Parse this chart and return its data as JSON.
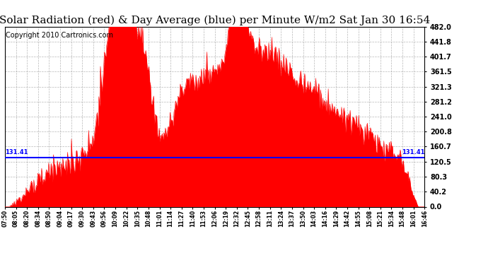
{
  "title": "Solar Radiation (red) & Day Average (blue) per Minute W/m2 Sat Jan 30 16:54",
  "copyright_text": "Copyright 2010 Cartronics.com",
  "y_max": 482.0,
  "y_min": 0.0,
  "day_average": 131.41,
  "day_average_label": "131.41",
  "bg_color": "#ffffff",
  "plot_bg_color": "#ffffff",
  "grid_color": "#999999",
  "fill_color": "#ff0000",
  "line_color": "#0000ff",
  "x_tick_labels": [
    "07:50",
    "08:05",
    "08:20",
    "08:34",
    "08:50",
    "09:04",
    "09:17",
    "09:30",
    "09:43",
    "09:56",
    "10:09",
    "10:22",
    "10:35",
    "10:48",
    "11:01",
    "11:14",
    "11:27",
    "11:40",
    "11:53",
    "12:06",
    "12:19",
    "12:32",
    "12:45",
    "12:58",
    "13:11",
    "13:24",
    "13:37",
    "13:50",
    "14:03",
    "14:16",
    "14:29",
    "14:42",
    "14:55",
    "15:08",
    "15:21",
    "15:34",
    "15:48",
    "16:01",
    "16:46"
  ],
  "y_tick_vals": [
    0.0,
    40.2,
    80.3,
    120.5,
    160.7,
    200.8,
    241.0,
    281.2,
    321.3,
    361.5,
    401.7,
    441.8,
    482.0
  ],
  "title_fontsize": 11,
  "copyright_fontsize": 7
}
